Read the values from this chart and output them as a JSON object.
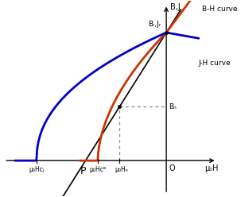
{
  "bg_color": "#ffffff",
  "BH_curve_color": "#cc3300",
  "JH_curve_color": "#0000cc",
  "permeance_color": "#000000",
  "dashed_color": "#888888",
  "Br": 1.0,
  "HcB": -0.38,
  "HcJ": -0.72,
  "Hd": -0.26,
  "Bd": 0.42,
  "labels": {
    "BJ_axis": "B,J",
    "muH_axis": "μ₀H",
    "BH_curve": "B-H curve",
    "JH_curve": "J-H curve",
    "Br_Jr": "Bᵣ,Jᵣ",
    "Bd": "Bₙ",
    "mu0Hd": "μ₀Hₙ",
    "mu0HcB": "μ₀Hᴄᴮ",
    "mu0HcJ": "μ₀Hᴄⱼ",
    "P": "P",
    "O": "O"
  }
}
